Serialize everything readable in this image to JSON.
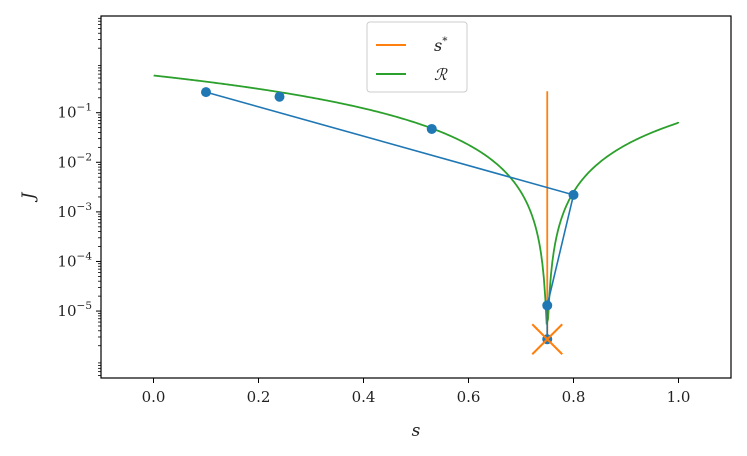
{
  "chart_data": {
    "type": "line",
    "title": "",
    "xlabel": "s",
    "ylabel": "J",
    "xlim": [
      -0.1,
      1.1
    ],
    "ylim_log10": [
      -6.35,
      0.95
    ],
    "yscale": "log",
    "grid": false,
    "legend_placement": "top-center",
    "x_ticks": [
      {
        "value": 0.0,
        "label": "0.0"
      },
      {
        "value": 0.2,
        "label": "0.2"
      },
      {
        "value": 0.4,
        "label": "0.4"
      },
      {
        "value": 0.6,
        "label": "0.6"
      },
      {
        "value": 0.8,
        "label": "0.8"
      },
      {
        "value": 1.0,
        "label": "1.0"
      }
    ],
    "y_ticks": [
      {
        "exp": -5,
        "base": "10",
        "sup": "−5"
      },
      {
        "exp": -4,
        "base": "10",
        "sup": "−4"
      },
      {
        "exp": -3,
        "base": "10",
        "sup": "−3"
      },
      {
        "exp": -2,
        "base": "10",
        "sup": "−2"
      },
      {
        "exp": -1,
        "base": "10",
        "sup": "−1"
      }
    ],
    "scatter_points": [
      {
        "x": 0.1,
        "y": 0.26
      },
      {
        "x": 0.24,
        "y": 0.21
      },
      {
        "x": 0.53,
        "y": 0.047
      },
      {
        "x": 0.8,
        "y": 0.0022
      },
      {
        "x": 0.75,
        "y": 1.3e-05
      },
      {
        "x": 0.75,
        "y": 2.7e-06
      }
    ],
    "path_points": [
      {
        "x": 0.1,
        "y": 0.26
      },
      {
        "x": 0.8,
        "y": 0.0022
      },
      {
        "x": 0.75,
        "y": 1.3e-05
      },
      {
        "x": 0.75,
        "y": 2.7e-06
      }
    ],
    "s_star": {
      "x": 0.75,
      "y_from": 2.7e-06,
      "y_to": 0.27
    },
    "optimum_marker": {
      "x": 0.75,
      "y": 2.7e-06
    },
    "r_curve": {
      "formula": "(s-0.75)^2 + 0.0000008*(1/s + 1/(1-s))",
      "x_from": 0.0003,
      "x_to": 0.9997
    },
    "legend": [
      {
        "label": "s",
        "sup": "*",
        "color": "#ff7f0e",
        "key": "s_star"
      },
      {
        "label": "ℛ",
        "sup": "",
        "color": "#2ca02c",
        "key": "r_curve"
      }
    ],
    "colors": {
      "path": "#1f77b4",
      "s_star": "#ff7f0e",
      "r_curve": "#2ca02c"
    }
  }
}
